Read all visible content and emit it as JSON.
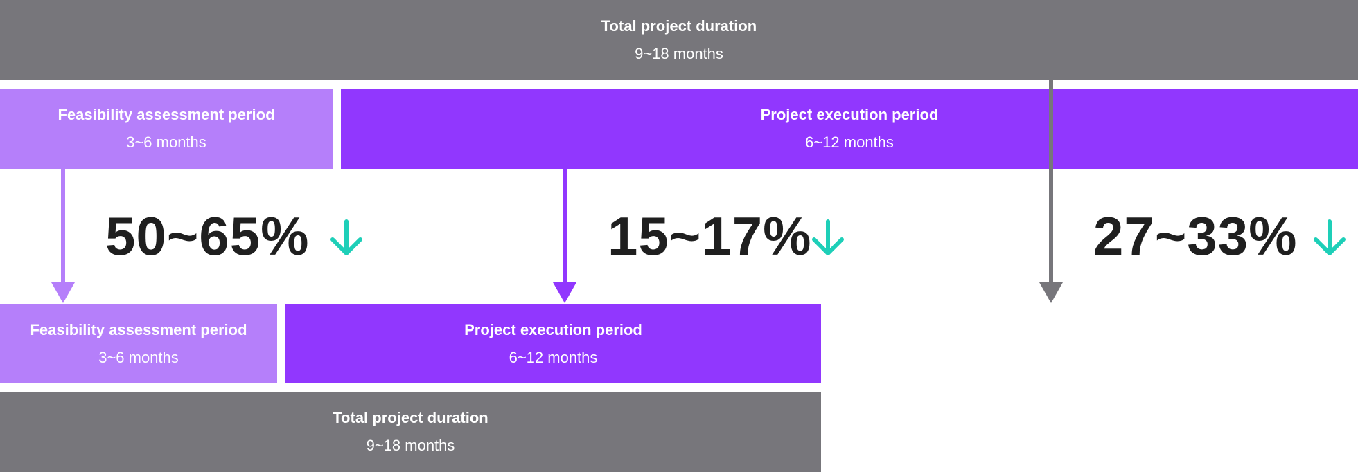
{
  "before": {
    "total": {
      "title": "Total project duration",
      "duration": "9~18 months"
    },
    "feasibility": {
      "title": "Feasibility assessment period",
      "duration": "3~6 months"
    },
    "execution": {
      "title": "Project execution period",
      "duration": "6~12 months"
    }
  },
  "reductions": [
    "50~65%",
    "15~17%",
    "27~33%"
  ],
  "after": {
    "feasibility": {
      "title": "Feasibility assessment period",
      "duration": "3~6 months"
    },
    "execution": {
      "title": "Project execution period",
      "duration": "6~12 months"
    },
    "total": {
      "title": "Total project duration",
      "duration": "9~18 months"
    }
  }
}
